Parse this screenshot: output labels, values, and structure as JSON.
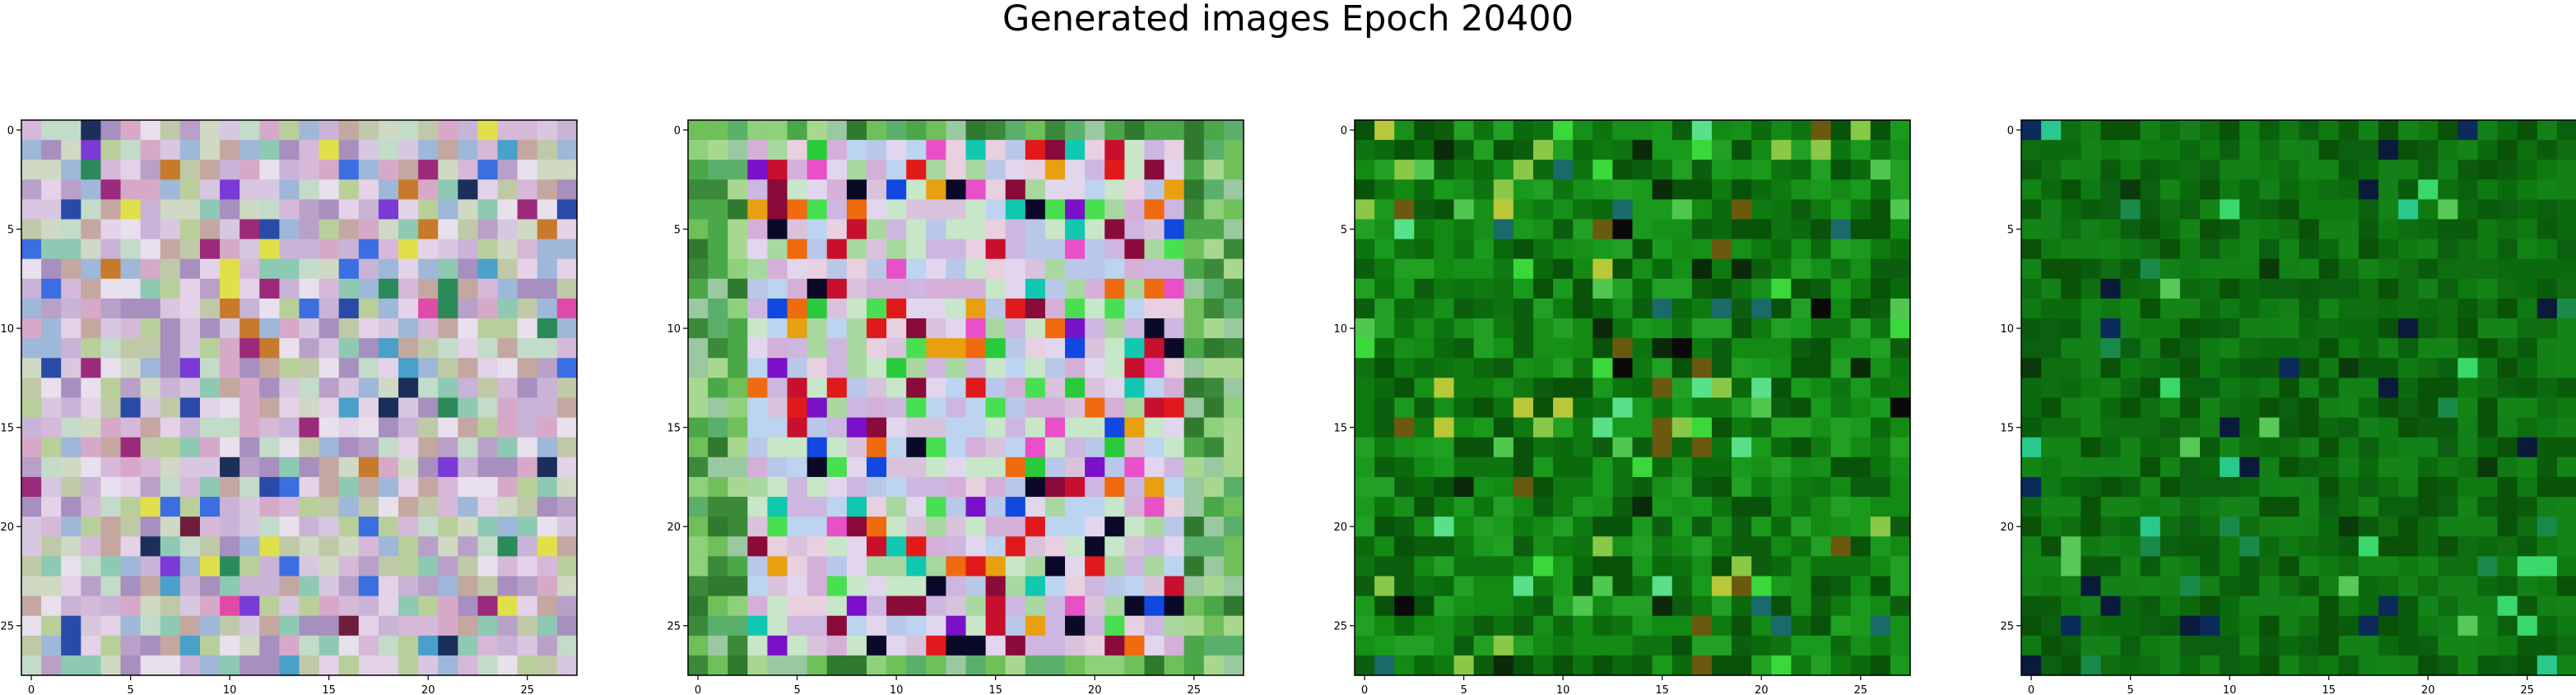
{
  "title": "Generated images Epoch 20400",
  "chart_data": [
    {
      "type": "heatmap",
      "rows": 28,
      "cols": 28,
      "xlim": [
        -0.5,
        27.5
      ],
      "ylim": [
        27.5,
        -0.5
      ],
      "x_ticks": [
        0,
        5,
        10,
        15,
        20,
        25
      ],
      "y_ticks": [
        0,
        5,
        10,
        15,
        20,
        25
      ],
      "x_tick_labels": [
        "0",
        "5",
        "10",
        "15",
        "20",
        "25"
      ],
      "y_tick_labels": [
        "0",
        "5",
        "10",
        "15",
        "20",
        "25"
      ],
      "palette": [
        "#c9b3d6",
        "#d8c7e0",
        "#bfc9a8",
        "#e3d2e8",
        "#b8a0c8",
        "#cfd9c3",
        "#a78fbf",
        "#d6b8d9",
        "#c3dbc9",
        "#9fb7d8",
        "#e8e0ec",
        "#b9cf9a",
        "#d7a9c9",
        "#8ec9b4",
        "#c4a7a0"
      ],
      "accents": [
        "#3b6ee0",
        "#9b2a7a",
        "#6e1e3a",
        "#2a8a5a",
        "#e04aa8",
        "#1b2f5a",
        "#c77a2b",
        "#4aa0c8",
        "#7a3ad6",
        "#e0e04a",
        "#2a4aa8"
      ],
      "accent_density": 0.12,
      "seed": 11
    },
    {
      "type": "heatmap",
      "rows": 28,
      "cols": 28,
      "xlim": [
        -0.5,
        27.5
      ],
      "ylim": [
        27.5,
        -0.5
      ],
      "x_ticks": [
        0,
        5,
        10,
        15,
        20,
        25
      ],
      "y_ticks": [
        0,
        5,
        10,
        15,
        20,
        25
      ],
      "x_tick_labels": [
        "0",
        "5",
        "10",
        "15",
        "20",
        "25"
      ],
      "y_tick_labels": [
        "0",
        "5",
        "10",
        "15",
        "20",
        "25"
      ],
      "palette": [
        "#cdb6e0",
        "#e2d6ef",
        "#b9c8e8",
        "#d9c3dc",
        "#c8e6c8",
        "#a8d8a0",
        "#e8d0e0",
        "#bcd4f0",
        "#d4b0d8"
      ],
      "accents": [
        "#e01a1a",
        "#e8a010",
        "#c8102e",
        "#2acb3a",
        "#7a10c8",
        "#1048e0",
        "#10c8b0",
        "#8a0a3a",
        "#e850c8",
        "#0a0a28",
        "#f06a10",
        "#48e050"
      ],
      "accent_density": 0.3,
      "border_palette": [
        "#6fbf5a",
        "#4aa848",
        "#8fd07a",
        "#3a8a3a",
        "#a8d890",
        "#5ab06a",
        "#2f7a2f",
        "#9ac8a0"
      ],
      "border_width": 3,
      "seed": 23
    },
    {
      "type": "heatmap",
      "rows": 28,
      "cols": 28,
      "xlim": [
        -0.5,
        27.5
      ],
      "ylim": [
        27.5,
        -0.5
      ],
      "x_ticks": [
        0,
        5,
        10,
        15,
        20,
        25
      ],
      "y_ticks": [
        0,
        5,
        10,
        15,
        20,
        25
      ],
      "x_tick_labels": [
        "0",
        "5",
        "10",
        "15",
        "20",
        "25"
      ],
      "y_tick_labels": [
        "0",
        "5",
        "10",
        "15",
        "20",
        "25"
      ],
      "palette": [
        "#0f7a10",
        "#138a14",
        "#0a6a0c",
        "#1a9a1c",
        "#0c5e0e",
        "#169018",
        "#0e7410",
        "#22a024",
        "#08520a"
      ],
      "accents": [
        "#0a2a0a",
        "#50c850",
        "#8ac848",
        "#1a6a6a",
        "#3ad83a",
        "#6a5a10",
        "#b8c838",
        "#0a0a0a",
        "#58e08a"
      ],
      "accent_density": 0.14,
      "seed": 37
    },
    {
      "type": "heatmap",
      "rows": 28,
      "cols": 28,
      "xlim": [
        -0.5,
        27.5
      ],
      "ylim": [
        27.5,
        -0.5
      ],
      "x_ticks": [
        0,
        5,
        10,
        15,
        20,
        25
      ],
      "y_ticks": [
        0,
        5,
        10,
        15,
        20,
        25
      ],
      "x_tick_labels": [
        "0",
        "5",
        "10",
        "15",
        "20",
        "25"
      ],
      "y_tick_labels": [
        "0",
        "5",
        "10",
        "15",
        "20",
        "25"
      ],
      "palette": [
        "#0c6a0e",
        "#107a12",
        "#0a5c0c",
        "#148416",
        "#0e6e10",
        "#0b6010",
        "#138018",
        "#095208"
      ],
      "accents": [
        "#0a1a3a",
        "#3ad86a",
        "#1a8a4a",
        "#0a3a0a",
        "#58c858",
        "#0a2a5a",
        "#2ac88a"
      ],
      "accent_density": 0.07,
      "seed": 53
    }
  ]
}
